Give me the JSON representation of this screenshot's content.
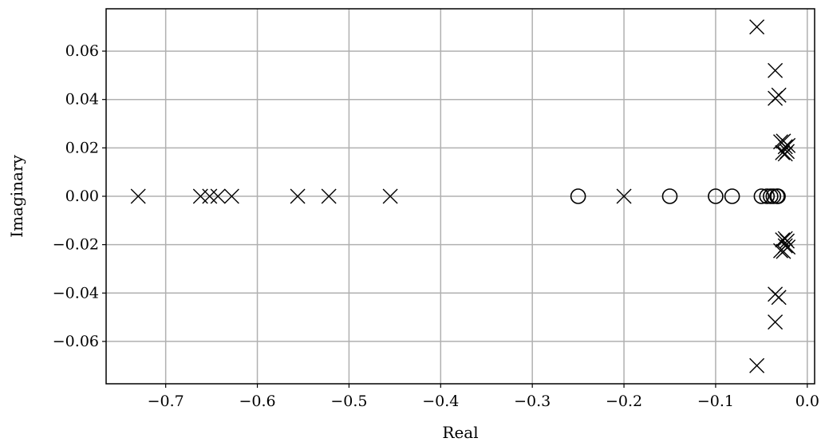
{
  "chart_data": {
    "type": "scatter",
    "title": "",
    "xlabel": "Real",
    "ylabel": "Imaginary",
    "xlim": [
      -0.765,
      0.008
    ],
    "ylim": [
      -0.0775,
      0.0775
    ],
    "grid": true,
    "x_ticks": [
      -0.7,
      -0.6,
      -0.5,
      -0.4,
      -0.3,
      -0.2,
      -0.1,
      0.0
    ],
    "x_tick_labels": [
      "−0.7",
      "−0.6",
      "−0.5",
      "−0.4",
      "−0.3",
      "−0.2",
      "−0.1",
      "0.0"
    ],
    "y_ticks": [
      0.06,
      0.04,
      0.02,
      0.0,
      -0.02,
      -0.04,
      -0.06
    ],
    "y_tick_labels": [
      "0.06",
      "0.04",
      "0.02",
      "0.00",
      "−0.02",
      "−0.04",
      "−0.06"
    ],
    "series": [
      {
        "marker": "x",
        "points": [
          [
            -0.73,
            0.0
          ],
          [
            -0.662,
            0.0
          ],
          [
            -0.652,
            0.0
          ],
          [
            -0.643,
            0.0
          ],
          [
            -0.628,
            0.0
          ],
          [
            -0.556,
            0.0
          ],
          [
            -0.522,
            0.0
          ],
          [
            -0.455,
            0.0
          ],
          [
            -0.2,
            0.0
          ],
          [
            -0.055,
            0.07
          ],
          [
            -0.055,
            -0.07
          ],
          [
            -0.035,
            0.052
          ],
          [
            -0.035,
            -0.052
          ],
          [
            -0.035,
            0.0405
          ],
          [
            -0.035,
            -0.0405
          ],
          [
            -0.031,
            0.0418
          ],
          [
            -0.031,
            -0.0418
          ],
          [
            -0.029,
            0.0225
          ],
          [
            -0.029,
            -0.0225
          ],
          [
            -0.026,
            0.0228
          ],
          [
            -0.026,
            -0.0228
          ],
          [
            -0.024,
            0.0205
          ],
          [
            -0.024,
            -0.0205
          ],
          [
            -0.021,
            0.021
          ],
          [
            -0.021,
            -0.021
          ],
          [
            -0.027,
            0.018
          ],
          [
            -0.027,
            -0.018
          ],
          [
            -0.024,
            0.0175
          ],
          [
            -0.024,
            -0.0175
          ],
          [
            -0.022,
            0.0185
          ],
          [
            -0.022,
            -0.0185
          ]
        ]
      },
      {
        "marker": "o",
        "points": [
          [
            -0.25,
            0.0
          ],
          [
            -0.15,
            0.0
          ],
          [
            -0.1,
            0.0
          ],
          [
            -0.082,
            0.0
          ],
          [
            -0.05,
            0.0
          ],
          [
            -0.044,
            0.0
          ],
          [
            -0.04,
            0.0
          ],
          [
            -0.037,
            0.0
          ],
          [
            -0.033,
            0.0
          ],
          [
            -0.032,
            0.0
          ]
        ]
      }
    ]
  }
}
